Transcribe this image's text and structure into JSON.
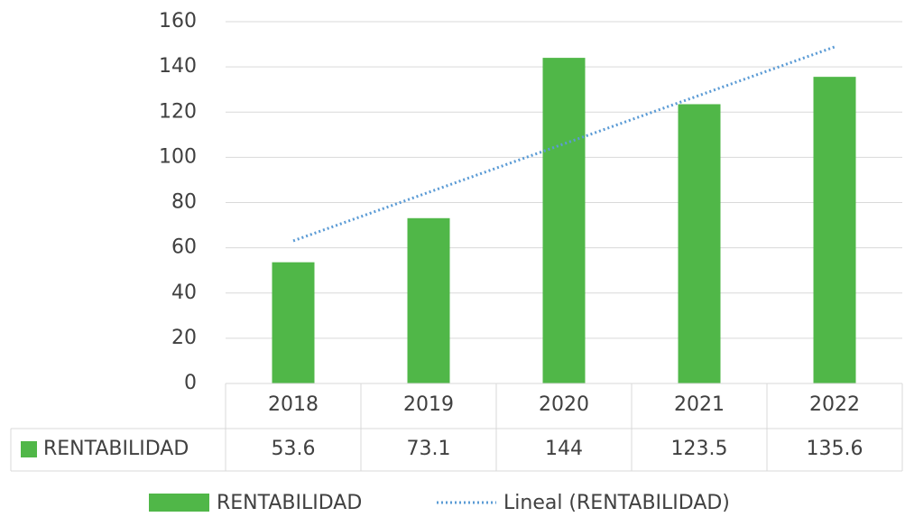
{
  "chart_data": {
    "type": "bar",
    "categories": [
      "2018",
      "2019",
      "2020",
      "2021",
      "2022"
    ],
    "series": [
      {
        "name": "RENTABILIDAD",
        "color": "#50b748",
        "values": [
          53.6,
          73.1,
          144,
          123.5,
          135.6
        ]
      }
    ],
    "trendline": {
      "name": "Lineal (RENTABILIDAD)",
      "color": "#5b9bd5",
      "values": [
        63.08,
        84.52,
        105.96,
        127.4,
        148.84
      ]
    },
    "ylim": [
      0,
      160
    ],
    "yticks": [
      0,
      20,
      40,
      60,
      80,
      100,
      120,
      140,
      160
    ],
    "grid": true,
    "data_table": true,
    "legend": "bottom"
  }
}
